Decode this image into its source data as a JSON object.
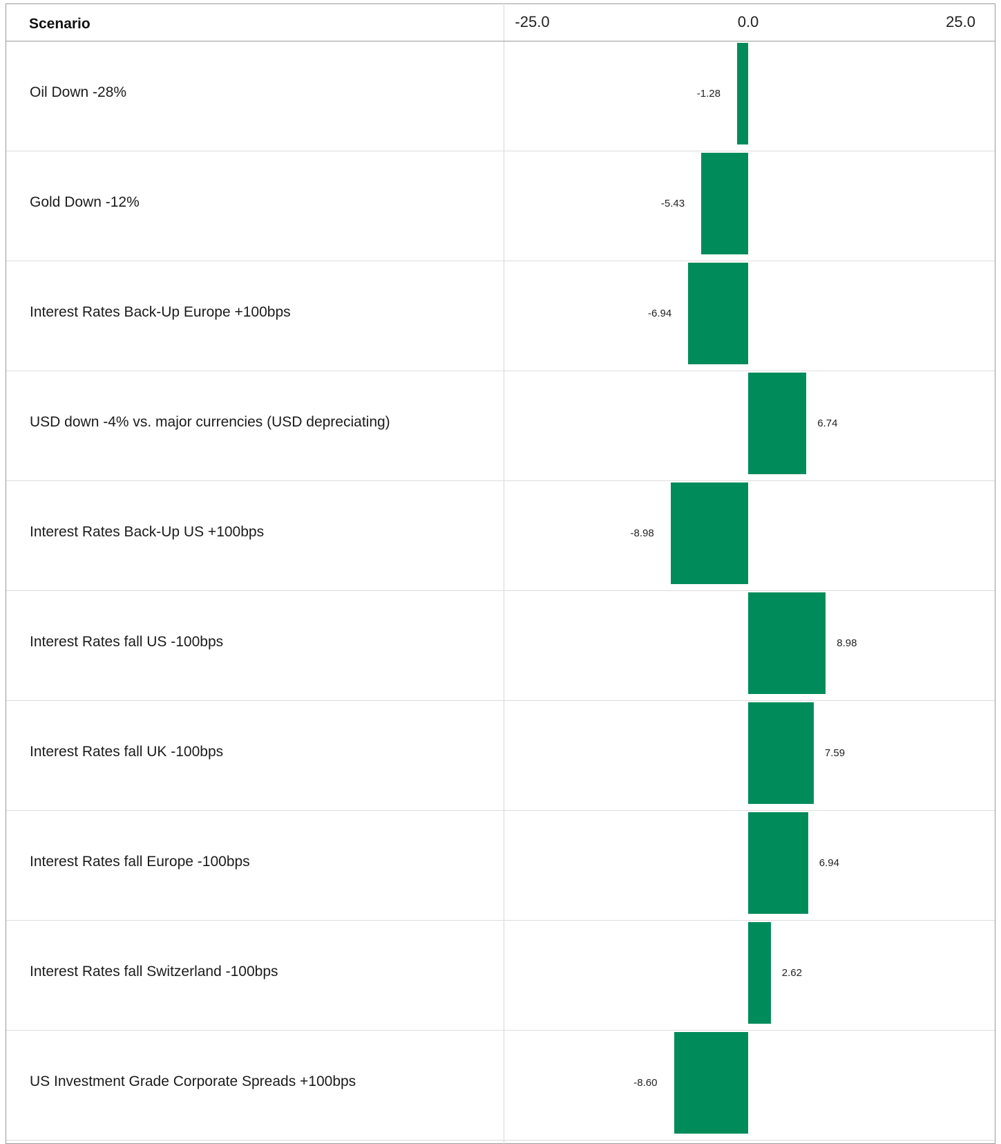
{
  "table": {
    "header": {
      "scenario_label": "Scenario"
    }
  },
  "chart_data": {
    "type": "bar",
    "orientation": "horizontal",
    "categories": [
      "Oil Down -28%",
      "Gold Down -12%",
      "Interest Rates Back-Up Europe +100bps",
      "USD down -4% vs. major currencies (USD depreciating)",
      "Interest Rates Back-Up US +100bps",
      "Interest Rates fall US -100bps",
      "Interest Rates fall UK -100bps",
      "Interest Rates fall Europe -100bps",
      "Interest Rates fall Switzerland -100bps",
      "US Investment Grade Corporate Spreads +100bps"
    ],
    "values": [
      -1.28,
      -5.43,
      -6.94,
      6.74,
      -8.98,
      8.98,
      7.59,
      6.94,
      2.62,
      -8.6
    ],
    "value_labels": [
      "-1.28",
      "-5.43",
      "-6.94",
      "6.74",
      "-8.98",
      "8.98",
      "7.59",
      "6.94",
      "2.62",
      "-8.60"
    ],
    "xlim": [
      -25,
      25
    ],
    "tick_labels": [
      "-25.0",
      "0.0",
      "25.0"
    ],
    "tick_values": [
      -25,
      0,
      25
    ],
    "bar_color": "#008c5a",
    "grid": false
  }
}
